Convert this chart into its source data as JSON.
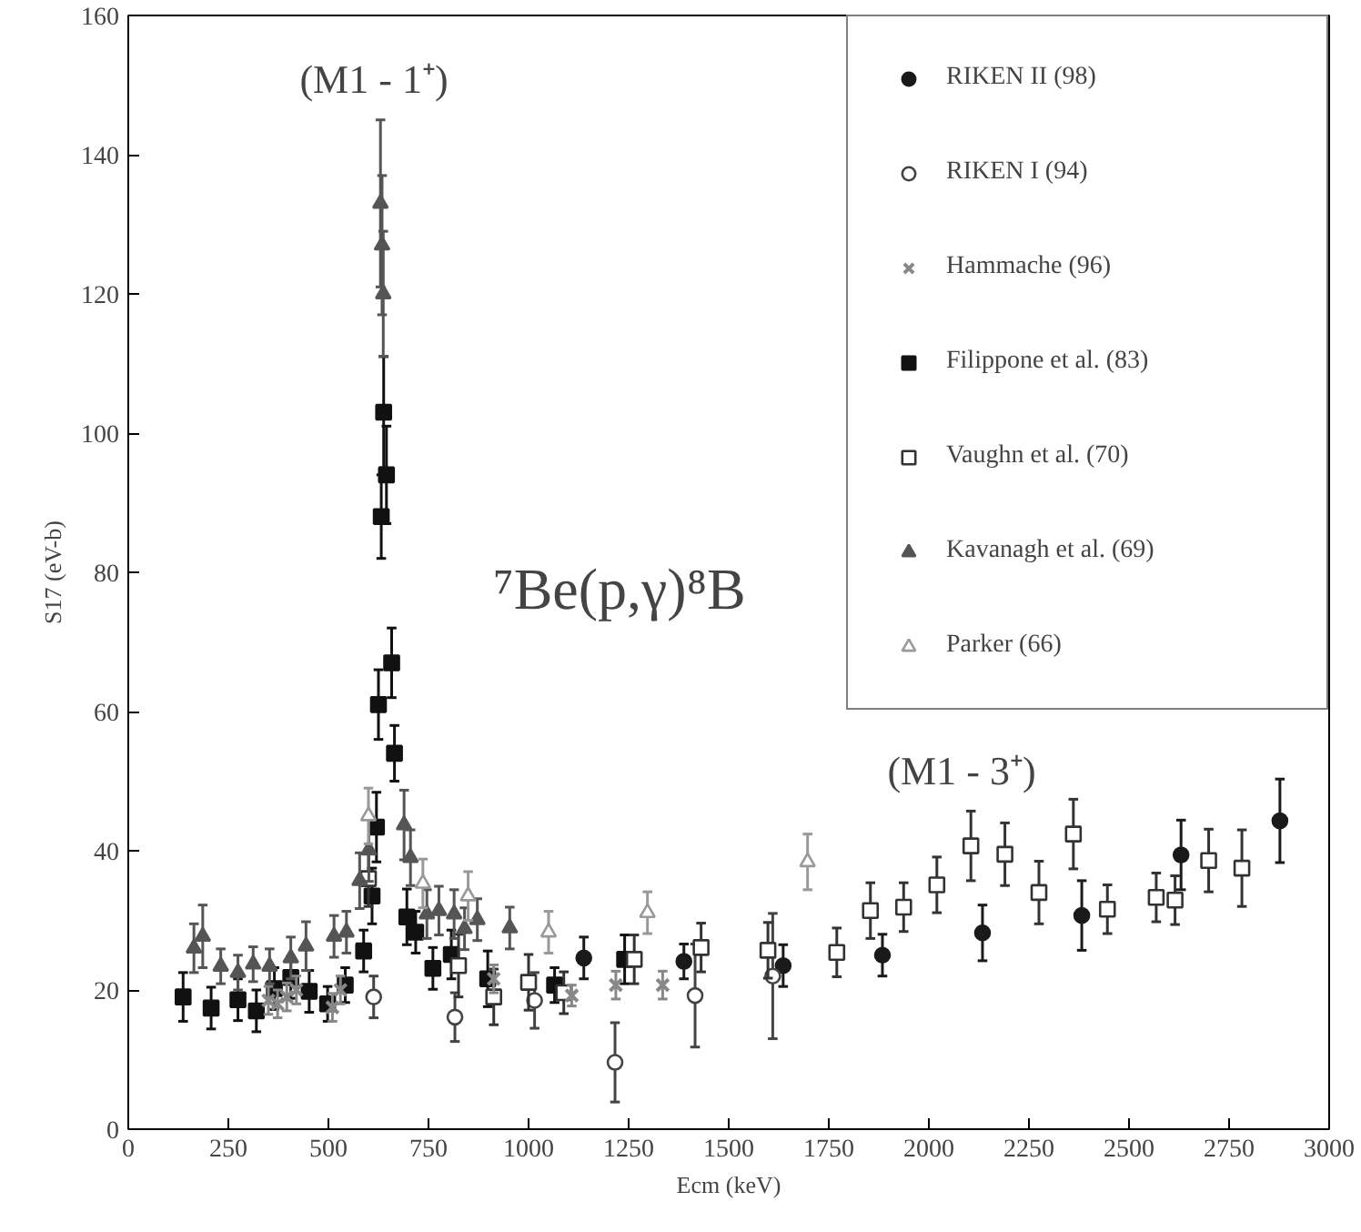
{
  "chart_data": {
    "type": "scatter",
    "title": "⁷Be(p,γ)⁸B",
    "xlabel": "Ecm (keV)",
    "ylabel": "S17 (eV-b)",
    "xlim": [
      0,
      3000
    ],
    "ylim": [
      0,
      160
    ],
    "xticks": [
      0,
      250,
      500,
      750,
      1000,
      1250,
      1500,
      1750,
      2000,
      2250,
      2500,
      2750,
      3000
    ],
    "yticks": [
      0,
      20,
      40,
      60,
      80,
      100,
      120,
      140,
      160
    ],
    "grid": false,
    "legend": "top right",
    "annotations": [
      "(M1 - 1⁺)",
      "(M1 - 3⁺)"
    ],
    "series": [
      {
        "name": "RIKEN II (98)",
        "color": "#1a1a1a",
        "marker": "circle",
        "x": [
          1138,
          1388,
          1636,
          1884,
          2134,
          2382,
          2630,
          2877
        ],
        "values": [
          24.6,
          24.1,
          23.5,
          25.0,
          28.2,
          30.7,
          39.4,
          44.3
        ],
        "errors": [
          3,
          2.5,
          3,
          3,
          4,
          5,
          5,
          6
        ]
      },
      {
        "name": "RIKEN I (94)",
        "color": "#444444",
        "marker": "circle_open",
        "x": [
          613,
          816,
          1015,
          1216,
          1416,
          1610
        ],
        "values": [
          19.0,
          16.1,
          18.5,
          9.6,
          19.2,
          22.0
        ],
        "errors": [
          3,
          3.5,
          4,
          5.7,
          7.4,
          9
        ]
      },
      {
        "name": "Hammache (96)",
        "color": "#888888",
        "marker": "x",
        "x": [
          350,
          373,
          396,
          420,
          510,
          530,
          913,
          1108,
          1218,
          1335
        ],
        "values": [
          18.5,
          18.0,
          19.0,
          20.0,
          17.5,
          20.0,
          21.6,
          19.2,
          20.7,
          20.7
        ],
        "errors": [
          2,
          2,
          2,
          2,
          2,
          2,
          2,
          1.5,
          2,
          2
        ]
      },
      {
        "name": "Filippone et al. (83)",
        "color": "#111111",
        "marker": "square",
        "x": [
          137,
          207,
          274,
          320,
          365,
          406,
          452,
          498,
          542,
          588,
          609,
          620,
          625,
          632,
          638,
          645,
          658,
          665,
          696,
          718,
          761,
          807,
          898,
          1065,
          1240
        ],
        "values": [
          19.0,
          17.4,
          18.6,
          17.0,
          20.2,
          21.8,
          19.8,
          18.0,
          20.7,
          25.6,
          33.5,
          43.4,
          61,
          88,
          103,
          94,
          67,
          54,
          30.5,
          28.3,
          23.1,
          25.1,
          21.6,
          20.7,
          24.4
        ],
        "errors": [
          3.5,
          3,
          3,
          3,
          3,
          3,
          3,
          2.5,
          2.5,
          3,
          4,
          5,
          5,
          6,
          8,
          7,
          5,
          4,
          4,
          3,
          3,
          3.5,
          4,
          2.5,
          3.5
        ]
      },
      {
        "name": "Vaughn et al. (70)",
        "color": "#333333",
        "marker": "square_open",
        "x": [
          600,
          825,
          913,
          1000,
          1088,
          1264,
          1431,
          1598,
          1770,
          1854,
          1937,
          2020,
          2105,
          2190,
          2275,
          2361,
          2446,
          2568,
          2615,
          2699,
          2782
        ],
        "values": [
          36,
          23.5,
          19.0,
          21.1,
          19.6,
          24.4,
          26.1,
          25.7,
          25.4,
          31.4,
          31.9,
          35.1,
          40.7,
          39.5,
          34.0,
          42.4,
          31.6,
          33.3,
          32.9,
          38.6,
          37.5
        ],
        "errors": [
          4,
          4.5,
          4,
          4,
          3,
          3.5,
          3.5,
          4,
          3.5,
          4,
          3.5,
          4,
          5,
          4.5,
          4.5,
          5,
          3.5,
          3.5,
          3.5,
          4.5,
          5.5
        ]
      },
      {
        "name": "Kavanagh et al. (69)",
        "color": "#555555",
        "marker": "triangle",
        "x": [
          164,
          186,
          231,
          274,
          312,
          353,
          406,
          444,
          514,
          545,
          578,
          601,
          630,
          634,
          637,
          689,
          705,
          746,
          776,
          814,
          840,
          872,
          953
        ],
        "values": [
          26.0,
          27.7,
          23.4,
          22.5,
          23.7,
          23.4,
          24.6,
          26.3,
          27.7,
          28.3,
          35.7,
          40.1,
          133,
          127,
          120,
          43.7,
          39.0,
          30.9,
          31.4,
          30.9,
          28.8,
          30.1,
          28.9
        ],
        "errors": [
          3.5,
          4.5,
          2.5,
          2.5,
          2.5,
          2.5,
          3,
          3.5,
          3,
          3,
          4,
          4.5,
          12,
          10,
          9,
          5,
          4,
          3.5,
          3.5,
          3.5,
          3,
          3,
          3
        ]
      },
      {
        "name": "Parker (66)",
        "color": "#999999",
        "marker": "triangle_open",
        "x": [
          600,
          736,
          849,
          1050,
          1297,
          1697
        ],
        "values": [
          45,
          35.3,
          33.5,
          28.3,
          31.1,
          38.4
        ],
        "errors": [
          4,
          3.5,
          3.5,
          3,
          3,
          4
        ]
      }
    ]
  }
}
